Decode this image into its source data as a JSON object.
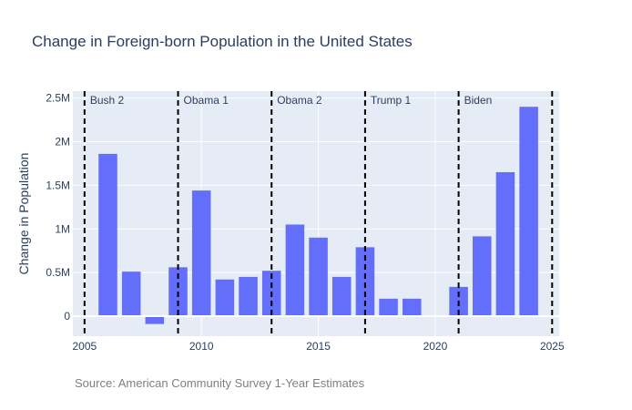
{
  "chart_data": {
    "type": "bar",
    "title": "Change in Foreign-born Population in the United States",
    "xlabel": "",
    "ylabel": "Change in Population",
    "x": [
      2006,
      2007,
      2008,
      2009,
      2010,
      2011,
      2012,
      2013,
      2014,
      2015,
      2016,
      2017,
      2018,
      2019,
      2021,
      2022,
      2023,
      2024
    ],
    "values": [
      1860000,
      510000,
      -90000,
      560000,
      1440000,
      420000,
      450000,
      520000,
      1050000,
      900000,
      450000,
      790000,
      200000,
      200000,
      335000,
      915000,
      1650000,
      2400000
    ],
    "xlim": [
      2004.5,
      2025.3
    ],
    "ylim": [
      -230000,
      2580000
    ],
    "xticks": [
      2005,
      2010,
      2015,
      2020,
      2025
    ],
    "xtick_labels": [
      "2005",
      "2010",
      "2015",
      "2020",
      "2025"
    ],
    "yticks": [
      0,
      500000,
      1000000,
      1500000,
      2000000,
      2500000
    ],
    "ytick_labels": [
      "0",
      "0.5M",
      "1M",
      "1.5M",
      "2M",
      "2.5M"
    ],
    "bar_color": "#636efa",
    "plot_bg": "#e5ecf6",
    "grid": true,
    "eras": [
      {
        "label": "Bush 2",
        "boundary": 2005
      },
      {
        "label": "Obama 1",
        "boundary": 2009
      },
      {
        "label": "Obama 2",
        "boundary": 2013
      },
      {
        "label": "Trump 1",
        "boundary": 2017
      },
      {
        "label": "Biden",
        "boundary": 2021
      }
    ],
    "final_boundary": 2025,
    "annotation": "Source: American Community Survey 1-Year Estimates"
  }
}
